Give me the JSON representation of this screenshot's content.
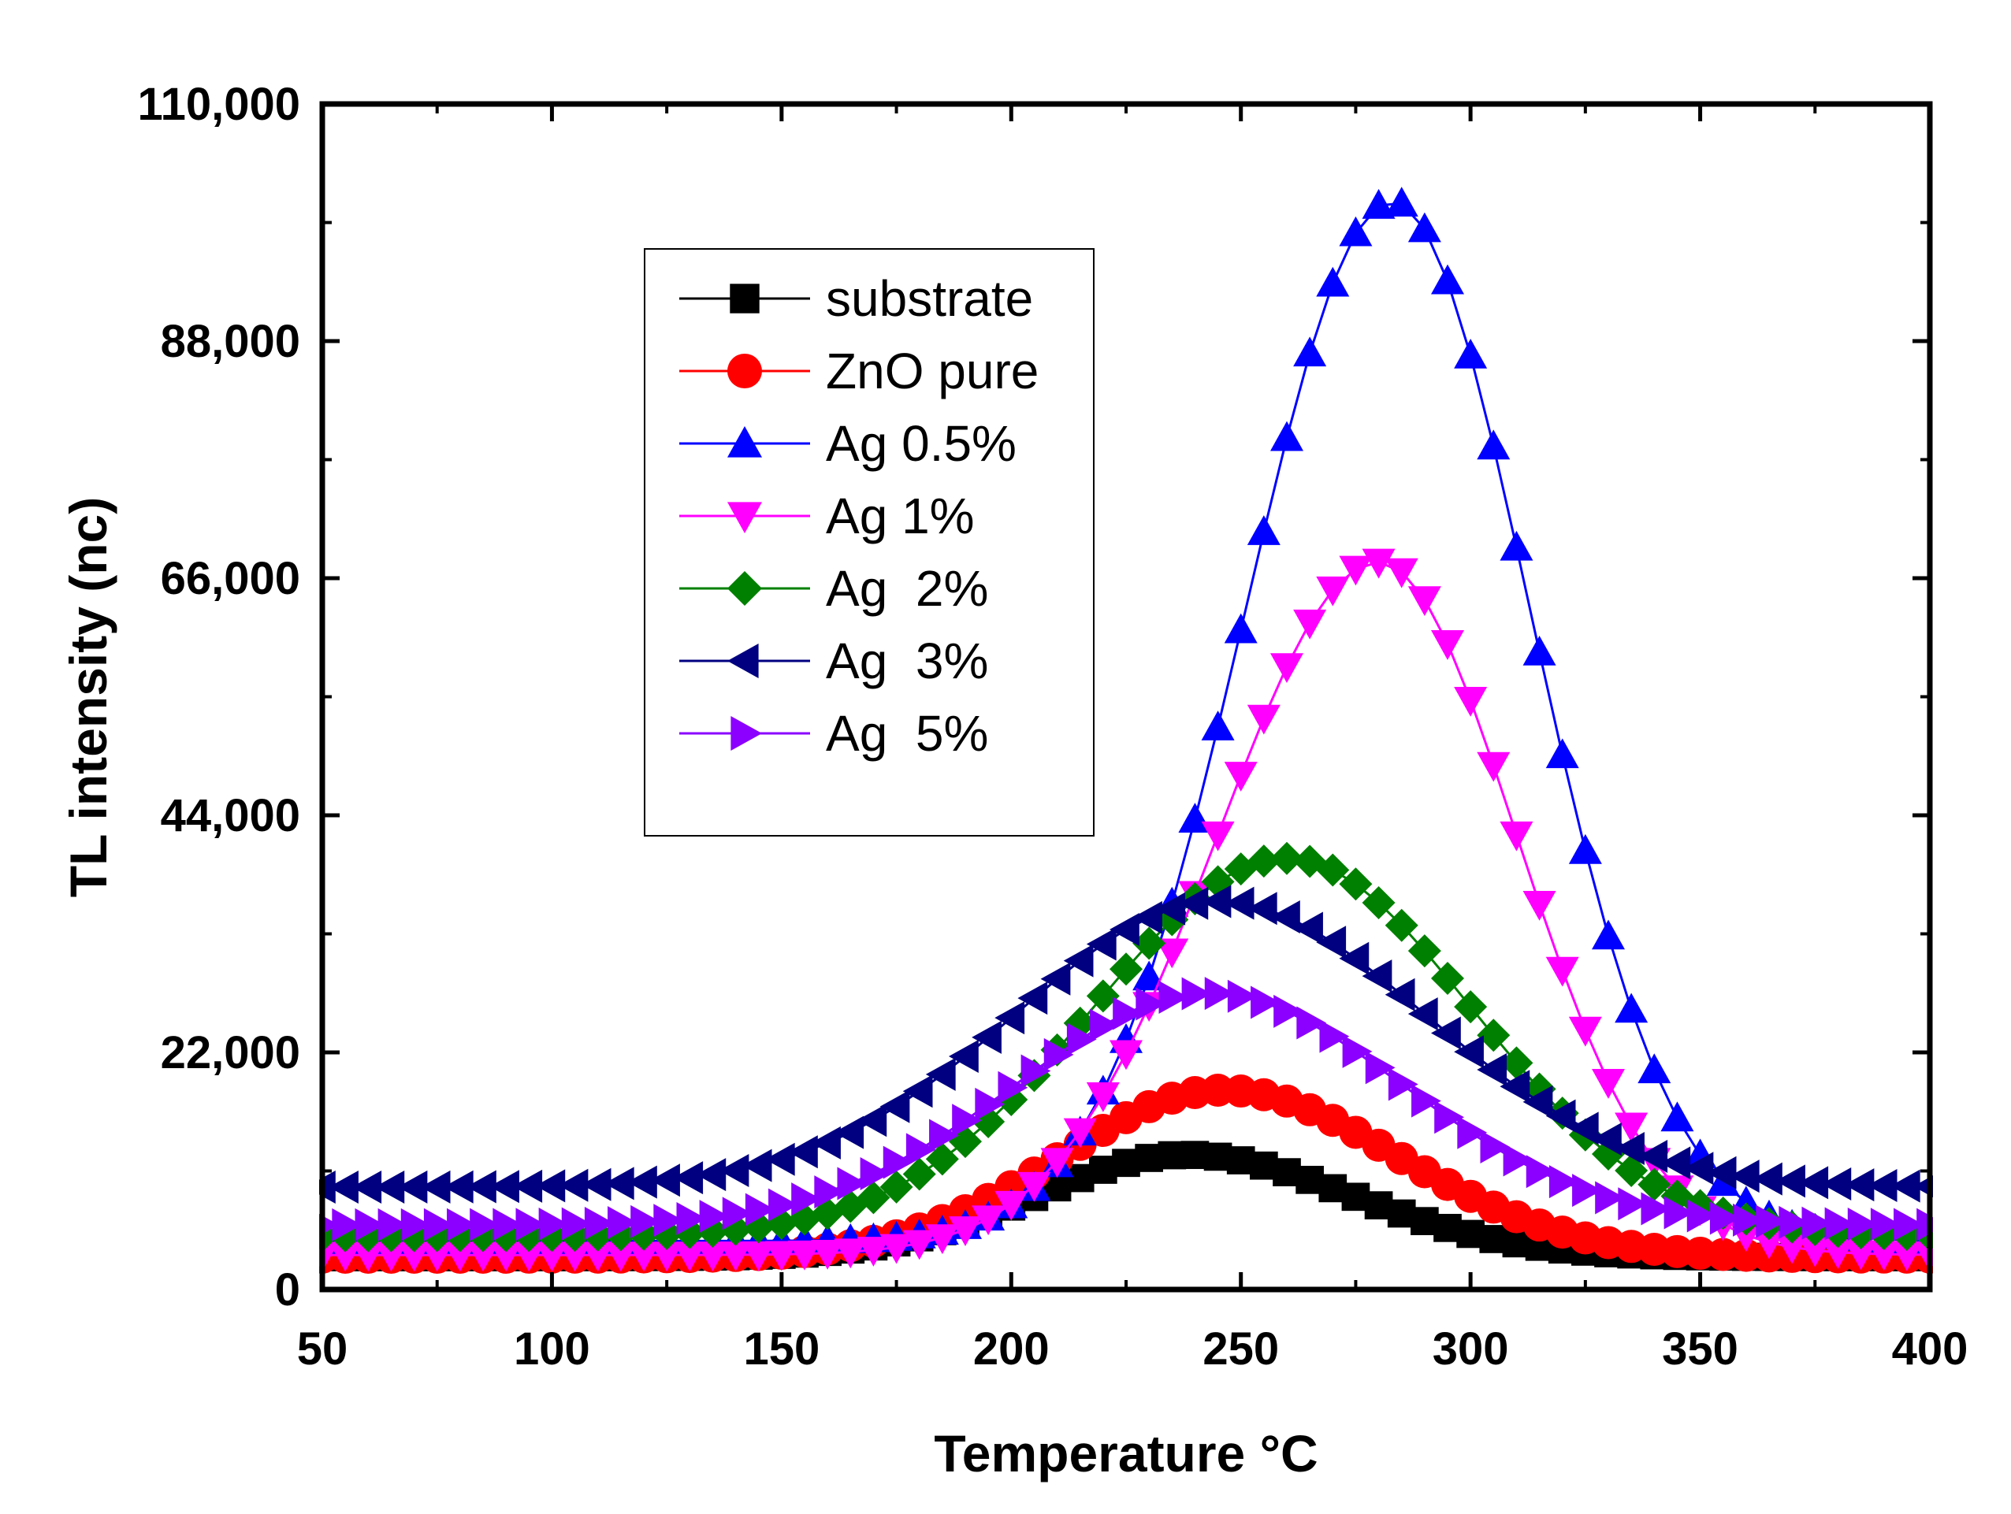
{
  "chart_data": {
    "type": "line",
    "title": "",
    "xlabel": "Temperature °C",
    "ylabel": "TL intensity (nc)",
    "xlim": [
      50,
      400
    ],
    "ylim": [
      0,
      110000
    ],
    "xticks": [
      50,
      100,
      150,
      200,
      250,
      300,
      350,
      400
    ],
    "yticks": [
      0,
      22000,
      44000,
      66000,
      88000,
      110000
    ],
    "xtick_labels": [
      "50",
      "100",
      "150",
      "200",
      "250",
      "300",
      "350",
      "400"
    ],
    "ytick_labels": [
      "0",
      "22,000",
      "44,000",
      "66,000",
      "88,000",
      "110,000"
    ],
    "legend_position": "upper-left inside plot",
    "x_step": 5,
    "series": [
      {
        "name": "substrate",
        "color": "#000000",
        "marker": "square",
        "baseline": 3000,
        "peak_x": 238,
        "peak": 12500,
        "sigma_left": 32,
        "sigma_right": 36
      },
      {
        "name": "ZnO pure",
        "color": "#ff0000",
        "marker": "circle",
        "baseline": 3000,
        "peak_x": 246,
        "peak": 18500,
        "sigma_left": 35,
        "sigma_right": 38
      },
      {
        "name": "Ag 0.5%",
        "color": "#0000ff",
        "marker": "triangle-up",
        "baseline": 4500,
        "peak_x": 283,
        "peak": 101000,
        "sigma_left": 32,
        "sigma_right": 30
      },
      {
        "name": "Ag 1%",
        "color": "#ff00ff",
        "marker": "triangle-down",
        "baseline": 3200,
        "peak_x": 280,
        "peak": 67500,
        "sigma_left": 35,
        "sigma_right": 30
      },
      {
        "name": "Ag  2%",
        "color": "#008000",
        "marker": "diamond",
        "baseline": 5000,
        "peak_x": 260,
        "peak": 40000,
        "sigma_left": 42,
        "sigma_right": 40
      },
      {
        "name": "Ag  3%",
        "color": "#000080",
        "marker": "triangle-left",
        "baseline": 9500,
        "peak_x": 245,
        "peak": 36000,
        "sigma_left": 44,
        "sigma_right": 45
      },
      {
        "name": "Ag  5%",
        "color": "#8b00ff",
        "marker": "triangle-right",
        "baseline": 6000,
        "peak_x": 243,
        "peak": 27500,
        "sigma_left": 42,
        "sigma_right": 42
      }
    ]
  }
}
